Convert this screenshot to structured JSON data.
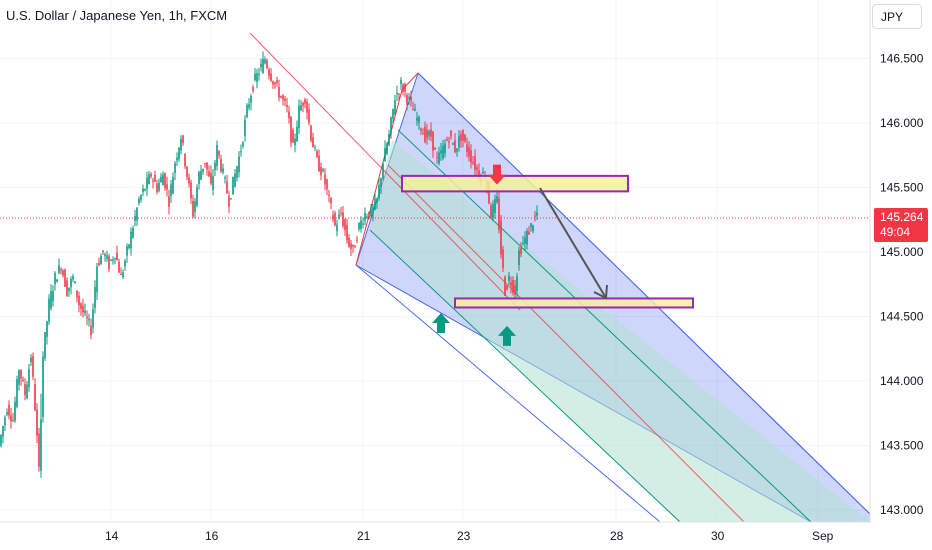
{
  "header": {
    "title": "U.S. Dollar / Japanese Yen, 1h, FXCM",
    "currency": "JPY"
  },
  "price_tag": {
    "price": "145.264",
    "countdown": "49:04",
    "color": "#f23645"
  },
  "colors": {
    "up": "#089981",
    "down": "#f23645",
    "channel_fill": "#4f6bed",
    "inner_fill": "#b2e0d0",
    "zone_fill": "#f5f0a0",
    "zone_border": "#9c27b0",
    "arrow_up": "#089981",
    "arrow_down": "#f23645",
    "projection": "#555555"
  },
  "chart_data": {
    "type": "candlestick",
    "symbol": "USDJPY",
    "timeframe": "1h",
    "y_ticks": [
      "146.500",
      "146.000",
      "145.500",
      "145.000",
      "144.500",
      "144.000",
      "143.500",
      "143.000"
    ],
    "x_ticks": [
      "14",
      "16",
      "21",
      "23",
      "28",
      "30",
      "Sep"
    ],
    "ylim": [
      143.0,
      146.7
    ],
    "last_price": 145.264,
    "grid": true,
    "price_path": [
      [
        0,
        143.5
      ],
      [
        8,
        143.8
      ],
      [
        14,
        143.7
      ],
      [
        20,
        144.1
      ],
      [
        26,
        143.9
      ],
      [
        32,
        144.2
      ],
      [
        36,
        143.8
      ],
      [
        40,
        143.3
      ],
      [
        44,
        144.2
      ],
      [
        50,
        144.6
      ],
      [
        56,
        144.8
      ],
      [
        62,
        144.9
      ],
      [
        68,
        144.7
      ],
      [
        74,
        144.8
      ],
      [
        80,
        144.6
      ],
      [
        86,
        144.5
      ],
      [
        92,
        144.4
      ],
      [
        98,
        144.9
      ],
      [
        104,
        145.0
      ],
      [
        110,
        144.9
      ],
      [
        116,
        145.0
      ],
      [
        122,
        144.8
      ],
      [
        128,
        145.0
      ],
      [
        134,
        145.2
      ],
      [
        140,
        145.4
      ],
      [
        146,
        145.5
      ],
      [
        152,
        145.6
      ],
      [
        158,
        145.5
      ],
      [
        164,
        145.6
      ],
      [
        170,
        145.4
      ],
      [
        176,
        145.7
      ],
      [
        182,
        145.9
      ],
      [
        188,
        145.6
      ],
      [
        194,
        145.3
      ],
      [
        200,
        145.6
      ],
      [
        206,
        145.7
      ],
      [
        212,
        145.5
      ],
      [
        218,
        145.8
      ],
      [
        224,
        145.6
      ],
      [
        230,
        145.4
      ],
      [
        236,
        145.6
      ],
      [
        242,
        145.8
      ],
      [
        248,
        146.1
      ],
      [
        254,
        146.3
      ],
      [
        260,
        146.4
      ],
      [
        266,
        146.5
      ],
      [
        270,
        146.4
      ],
      [
        276,
        146.3
      ],
      [
        282,
        146.2
      ],
      [
        288,
        146.1
      ],
      [
        294,
        145.8
      ],
      [
        300,
        146.1
      ],
      [
        306,
        146.2
      ],
      [
        312,
        145.9
      ],
      [
        318,
        145.7
      ],
      [
        324,
        145.6
      ],
      [
        330,
        145.4
      ],
      [
        336,
        145.2
      ],
      [
        342,
        145.3
      ],
      [
        348,
        145.1
      ],
      [
        354,
        145.0
      ],
      [
        360,
        145.2
      ],
      [
        366,
        145.3
      ],
      [
        372,
        145.3
      ],
      [
        378,
        145.4
      ],
      [
        384,
        145.7
      ],
      [
        390,
        145.9
      ],
      [
        396,
        146.2
      ],
      [
        402,
        146.3
      ],
      [
        408,
        146.2
      ],
      [
        414,
        146.1
      ],
      [
        420,
        146.0
      ],
      [
        426,
        145.9
      ],
      [
        432,
        145.9
      ],
      [
        438,
        145.7
      ],
      [
        444,
        145.8
      ],
      [
        450,
        145.9
      ],
      [
        456,
        145.8
      ],
      [
        462,
        145.9
      ],
      [
        468,
        145.8
      ],
      [
        474,
        145.7
      ],
      [
        480,
        145.6
      ],
      [
        486,
        145.6
      ],
      [
        492,
        145.3
      ],
      [
        498,
        145.4
      ],
      [
        502,
        145.0
      ],
      [
        506,
        144.7
      ],
      [
        510,
        144.8
      ],
      [
        516,
        144.7
      ],
      [
        520,
        145.0
      ],
      [
        526,
        145.1
      ],
      [
        532,
        145.2
      ],
      [
        538,
        145.3
      ]
    ],
    "annotations": {
      "resistance_zone": [
        145.47,
        145.59
      ],
      "support_zone": [
        144.57,
        144.64
      ],
      "arrows": [
        {
          "dir": "up",
          "x": 441,
          "y": 144.45
        },
        {
          "dir": "down",
          "x": 497,
          "y": 145.6
        },
        {
          "dir": "up",
          "x": 507,
          "y": 144.35
        }
      ]
    }
  }
}
